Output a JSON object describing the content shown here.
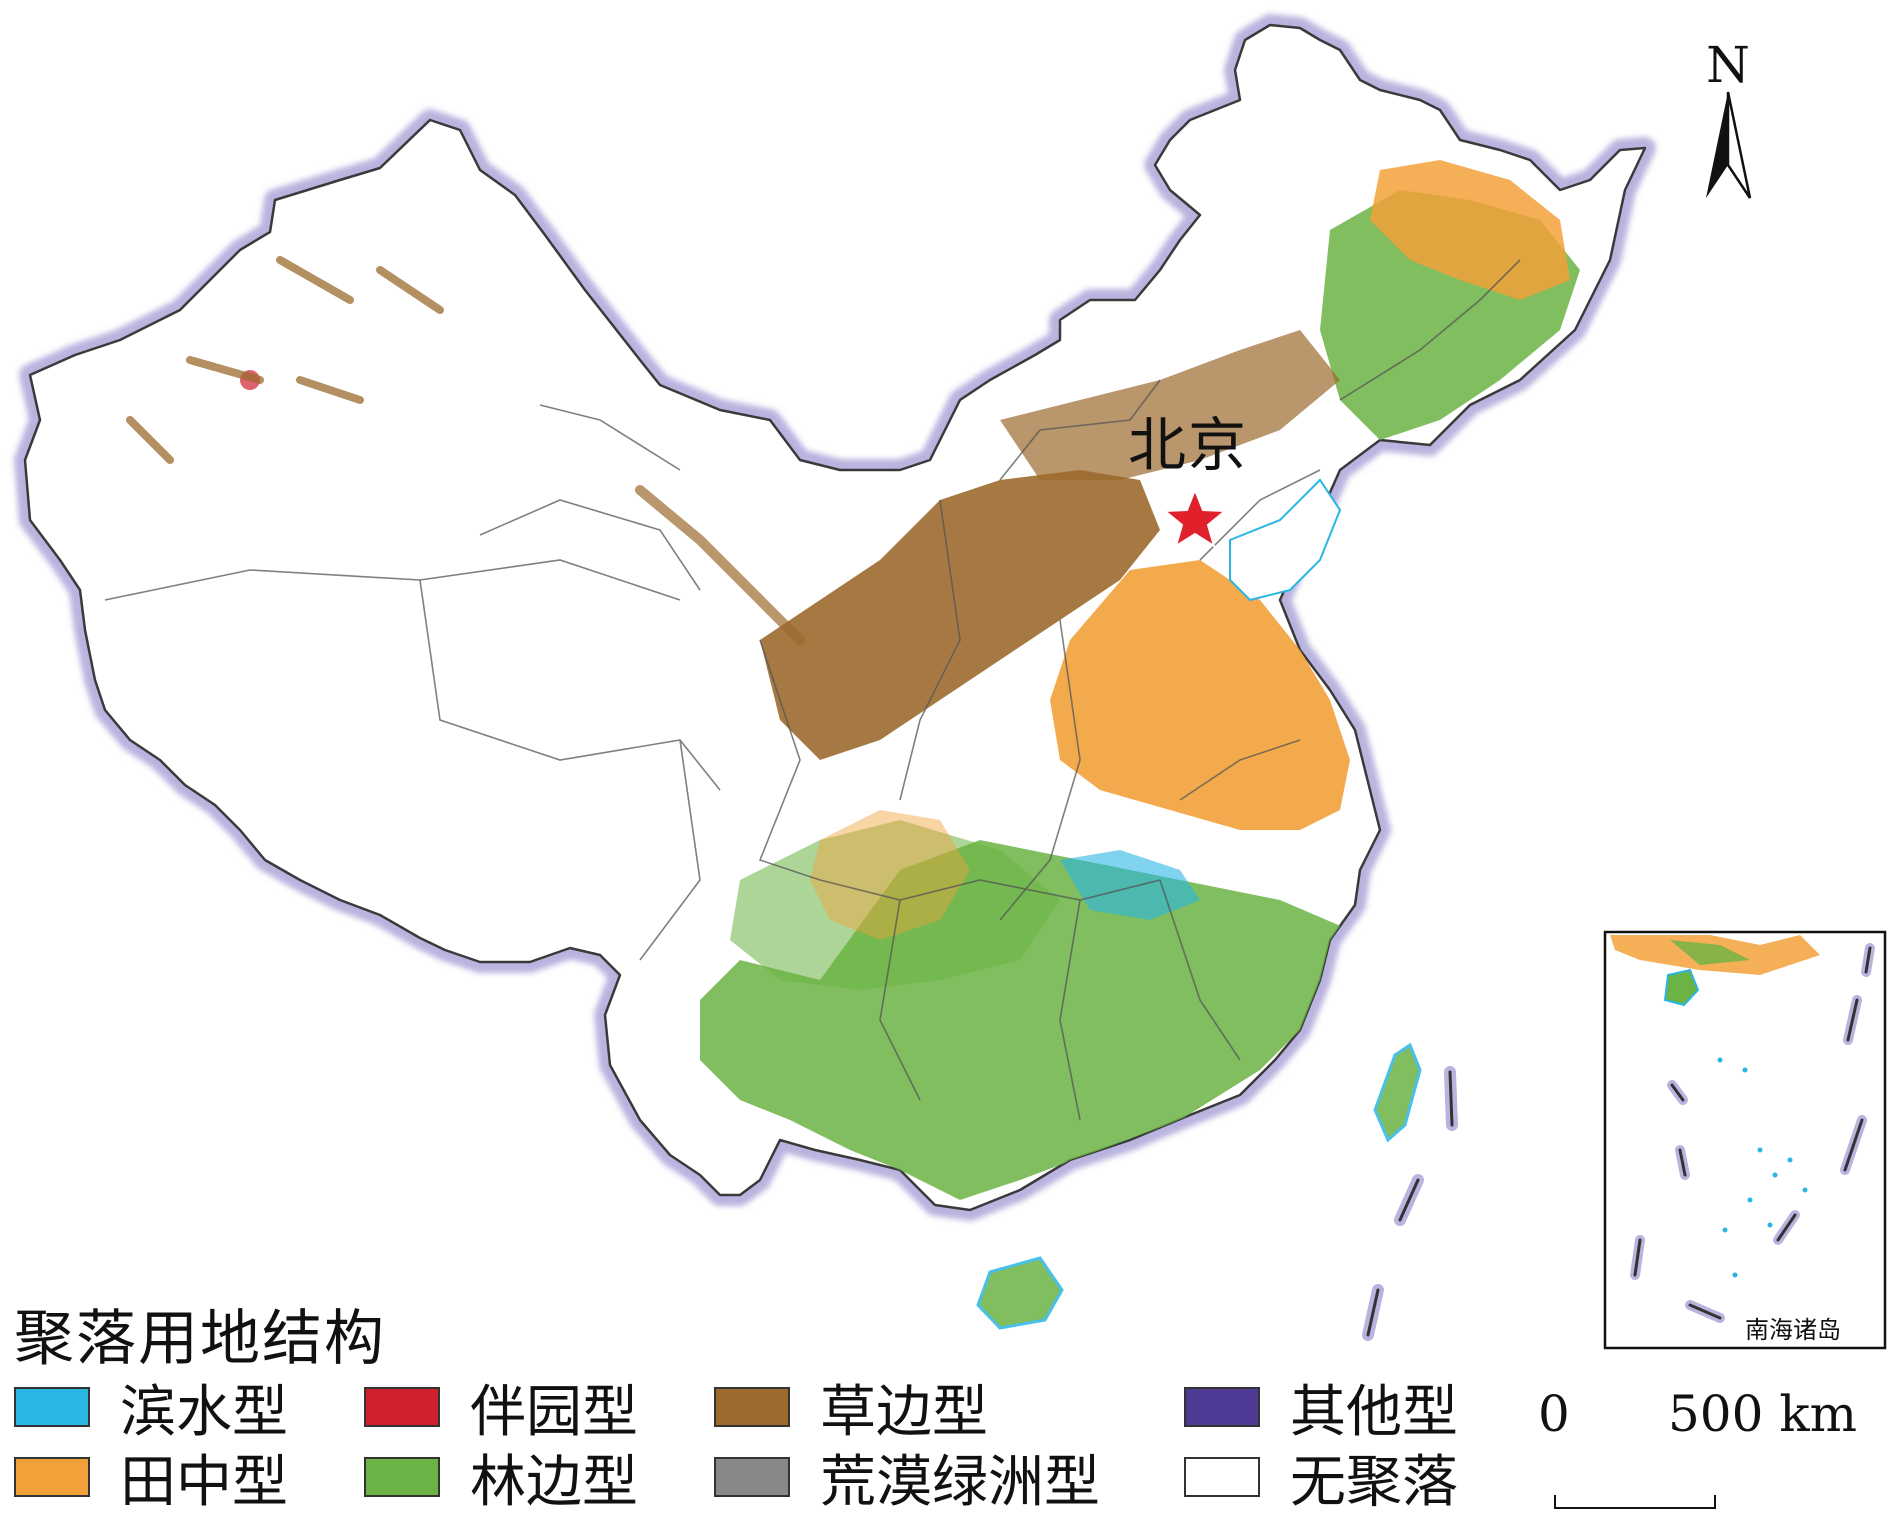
{
  "map": {
    "capital_label": "北京",
    "north_label": "N",
    "inset_label": "南海诸岛",
    "scale": {
      "start": "0",
      "end": "500 km"
    }
  },
  "legend": {
    "title": "聚落用地结构",
    "items": [
      {
        "label": "滨水型",
        "color": "#29b6e3",
        "icon": "swatch"
      },
      {
        "label": "伴园型",
        "color": "#d0202e",
        "icon": "swatch"
      },
      {
        "label": "草边型",
        "color": "#9b6a2c",
        "icon": "swatch"
      },
      {
        "label": "其他型",
        "color": "#4f3a96",
        "icon": "swatch"
      },
      {
        "label": "田中型",
        "color": "#f2a13a",
        "icon": "swatch"
      },
      {
        "label": "林边型",
        "color": "#6ab344",
        "icon": "swatch"
      },
      {
        "label": "荒漠绿洲型",
        "color": "#888888",
        "icon": "swatch"
      },
      {
        "label": "无聚落",
        "color": "#ffffff",
        "icon": "swatch"
      }
    ]
  },
  "colors": {
    "border_halo": "#b9b4df",
    "border_line": "#3a3a3a",
    "capital_star": "#e0202a"
  }
}
